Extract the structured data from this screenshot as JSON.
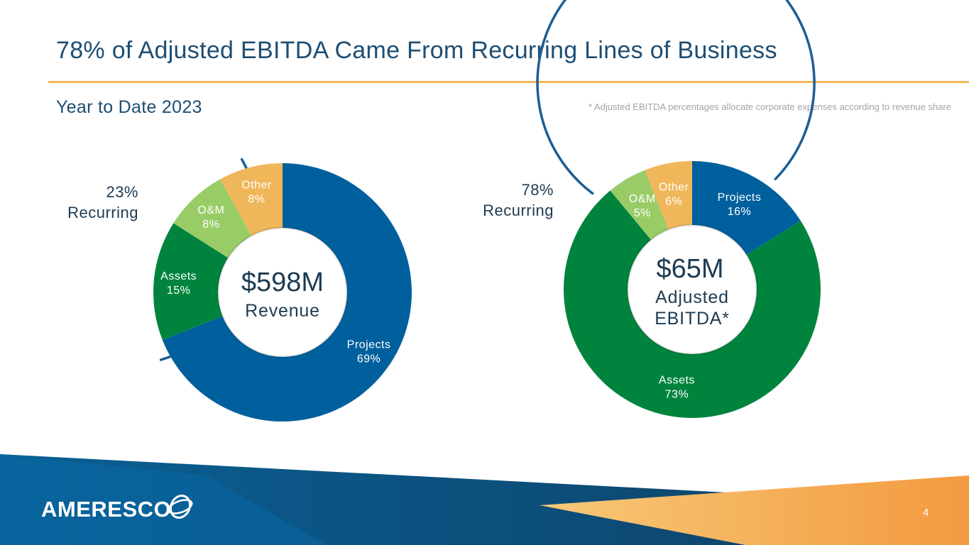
{
  "title": "78% of Adjusted EBITDA Came From Recurring Lines of Business",
  "subtitle": "Year to Date 2023",
  "footnote": "* Adjusted EBITDA percentages allocate corporate expenses according to revenue share",
  "page_number": "4",
  "logo": {
    "text": "AMERESCO"
  },
  "colors": {
    "projects": "#00609d",
    "assets": "#00843d",
    "om": "#99cc66",
    "other": "#f0b65a",
    "title": "#1d4e73",
    "arc": "#1d5e94"
  },
  "chart_data": [
    {
      "type": "donut",
      "center_value": "$598M",
      "center_label": [
        "Revenue"
      ],
      "recurring": {
        "percent": "23%",
        "label": "Recurring"
      },
      "slices": [
        {
          "name": "Projects",
          "label": "Projects",
          "pct_label": "69%",
          "value": 69,
          "color": "#00609d"
        },
        {
          "name": "Assets",
          "label": "Assets",
          "pct_label": "15%",
          "value": 15,
          "color": "#00843d"
        },
        {
          "name": "O&M",
          "label": "O&M",
          "pct_label": "8%",
          "value": 8,
          "color": "#99cc66"
        },
        {
          "name": "Other",
          "label": "Other",
          "pct_label": "8%",
          "value": 8,
          "color": "#f0b65a"
        }
      ]
    },
    {
      "type": "donut",
      "center_value": "$65M",
      "center_label": [
        "Adjusted",
        "EBITDA*"
      ],
      "recurring": {
        "percent": "78%",
        "label": "Recurring"
      },
      "slices": [
        {
          "name": "Projects",
          "label": "Projects",
          "pct_label": "16%",
          "value": 16,
          "color": "#00609d"
        },
        {
          "name": "Assets",
          "label": "Assets",
          "pct_label": "73%",
          "value": 73,
          "color": "#00843d"
        },
        {
          "name": "O&M",
          "label": "O&M",
          "pct_label": "5%",
          "value": 5,
          "color": "#99cc66"
        },
        {
          "name": "Other",
          "label": "Other",
          "pct_label": "6%",
          "value": 6,
          "color": "#f0b65a"
        }
      ]
    }
  ]
}
